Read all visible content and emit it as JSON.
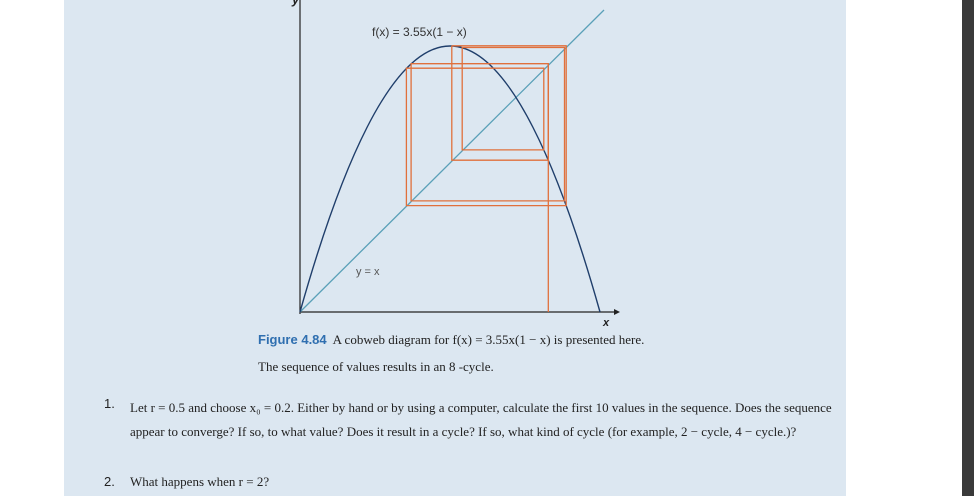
{
  "figure": {
    "y_axis_label": "y",
    "x_axis_label": "x",
    "function_label": "f(x) = 3.55x(1 − x)",
    "line_label": "y = x"
  },
  "caption": {
    "figure_number": "Figure 4.84",
    "text": "A cobweb diagram for f(x) = 3.55x(1 − x) is presented here. The sequence of values results in an 8 -cycle."
  },
  "exercises": [
    {
      "number": "1.",
      "text": "Let r = 0.5 and choose x₀ = 0.2. Either by hand or by using a computer, calculate the first 10 values in the sequence. Does the sequence appear to converge? If so, to what value? Does it result in a cycle? If so, what kind of cycle (for example, 2 − cycle, 4 − cycle.)?"
    },
    {
      "number": "2.",
      "text": "What happens when r = 2?"
    }
  ]
}
